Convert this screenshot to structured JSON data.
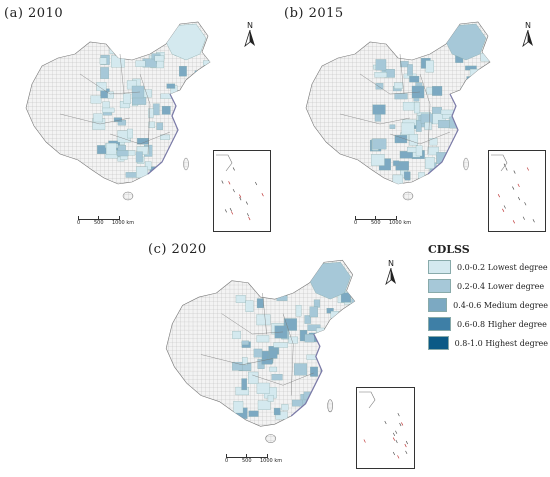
{
  "panels": [
    {
      "id": "a",
      "label": "(a) 2010",
      "dominant": "c1"
    },
    {
      "id": "b",
      "label": "(b) 2015",
      "dominant": "c2"
    },
    {
      "id": "c",
      "label": "(c) 2020",
      "dominant": "c2"
    }
  ],
  "north_arrow": {
    "letter": "N"
  },
  "scale_bar": {
    "labels": [
      "0",
      "500",
      "1000 km"
    ]
  },
  "legend": {
    "title": "CDLSS",
    "items": [
      {
        "range": "0.0-0.2",
        "label": "Lowest degree",
        "color": "#d4e9ef"
      },
      {
        "range": "0.2-0.4",
        "label": "Lower degree",
        "color": "#a6c8d8"
      },
      {
        "range": "0.4-0.6",
        "label": "Medium degree",
        "color": "#7ca9c2"
      },
      {
        "range": "0.6-0.8",
        "label": "Higher degree",
        "color": "#3e7fa6"
      },
      {
        "range": "0.8-1.0",
        "label": "Highest degree",
        "color": "#0b5a86"
      }
    ]
  },
  "colors": {
    "background_hatch": "#b7b7b7",
    "boundary": "#777777",
    "coast": "#7a7aa8"
  }
}
